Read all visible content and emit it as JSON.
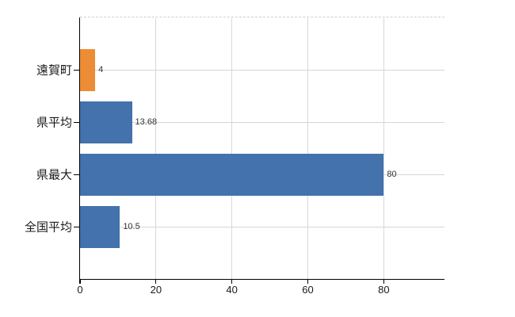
{
  "chart_data": {
    "type": "bar",
    "orientation": "horizontal",
    "categories": [
      "遠賀町",
      "県平均",
      "県最大",
      "全国平均"
    ],
    "values": [
      4,
      13.68,
      80,
      10.5
    ],
    "value_labels": [
      "4",
      "13.68",
      "80",
      "10.5"
    ],
    "bar_colors": [
      "#ec8d35",
      "#4372ac",
      "#4372ac",
      "#4372ac"
    ],
    "x_tick_values": [
      0,
      20,
      40,
      60,
      80
    ],
    "x_tick_labels": [
      "0",
      "20",
      "40",
      "60",
      "80"
    ],
    "xlim": [
      0,
      96
    ],
    "grid": "on",
    "legend": "none"
  },
  "colors": {
    "background": "#ffffff",
    "bar_orange": "#ec8d35",
    "bar_blue": "#4372ac",
    "axis_line": "#000000",
    "vertical_gridline": "#d9d9d9",
    "horizontal_gridline": "#d3d9cb",
    "plot_top_border": "#cfcfcf",
    "category_label_text": "#1a1a1a",
    "tick_label_text": "#1a1a1a",
    "value_label_text": "#333333"
  }
}
